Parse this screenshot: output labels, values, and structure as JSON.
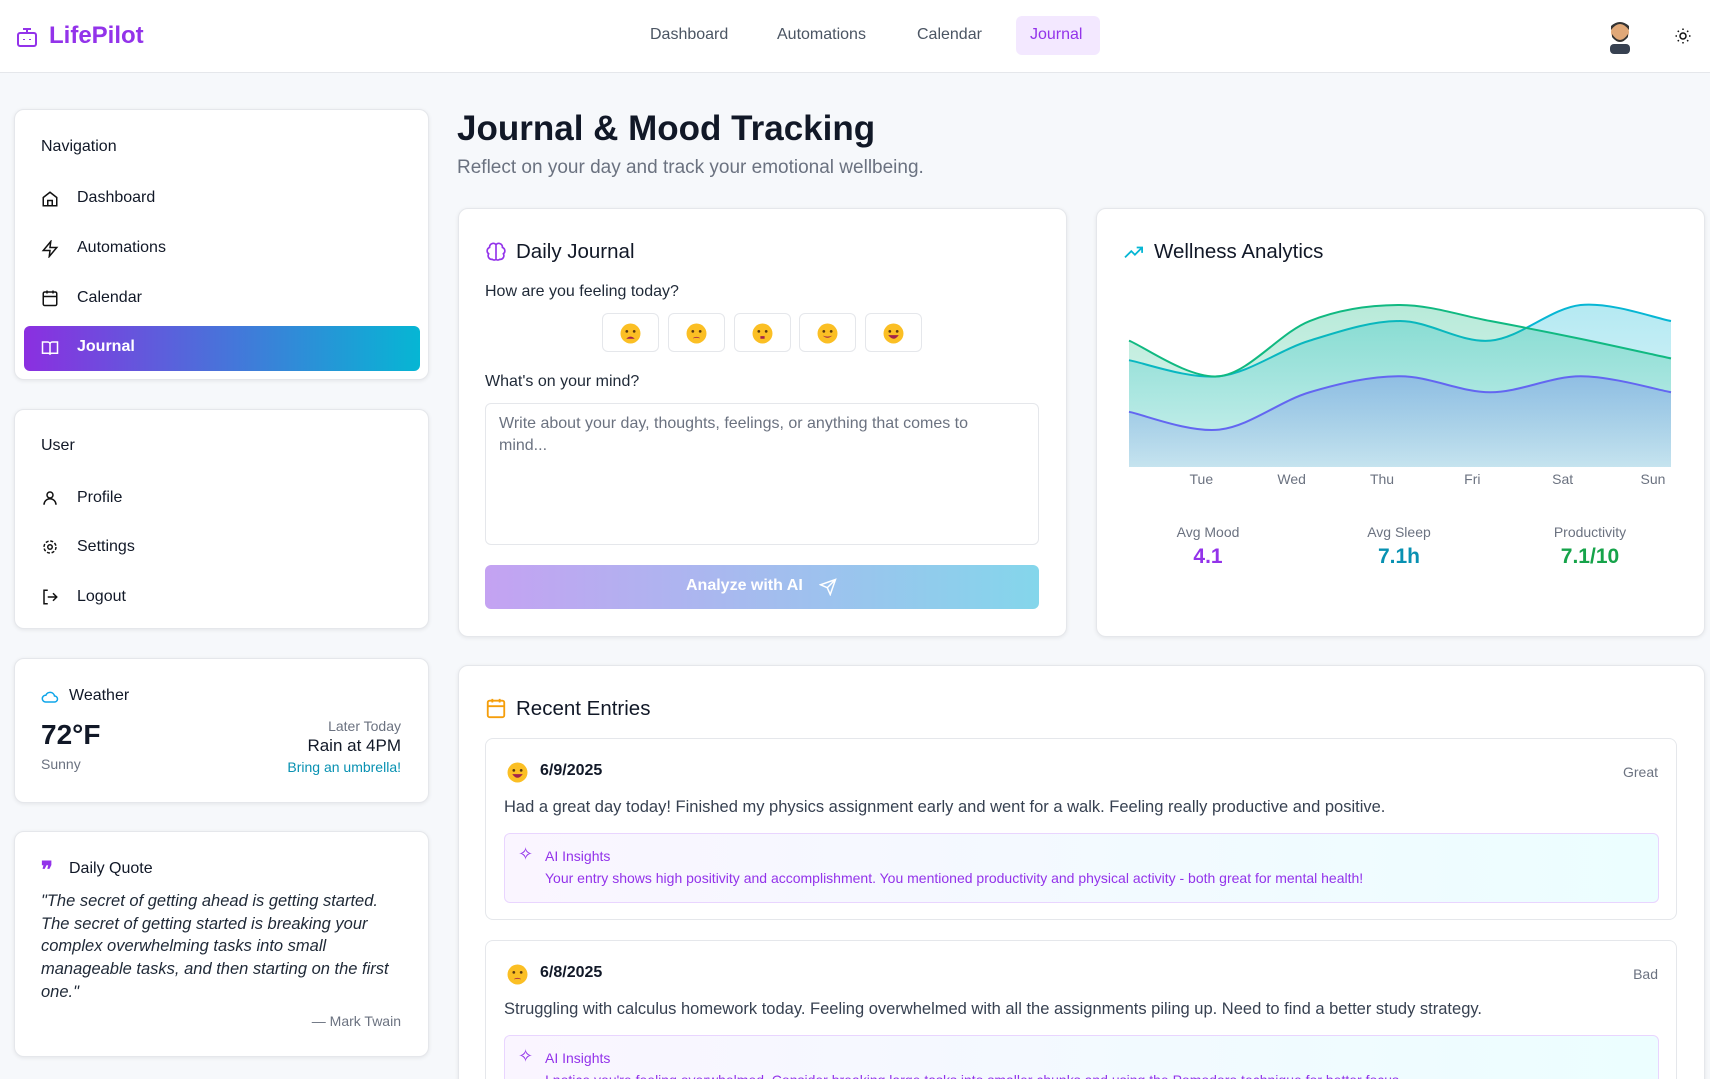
{
  "header": {
    "brand": "LifePilot",
    "nav": [
      "Dashboard",
      "Automations",
      "Calendar",
      "Journal"
    ]
  },
  "sidebar": {
    "navigation": {
      "title": "Navigation",
      "items": [
        "Dashboard",
        "Automations",
        "Calendar",
        "Journal"
      ]
    },
    "user": {
      "title": "User",
      "items": [
        "Profile",
        "Settings",
        "Logout"
      ]
    },
    "weather": {
      "title": "Weather",
      "temp": "72°F",
      "condition": "Sunny",
      "later_label": "Later Today",
      "forecast": "Rain at 4PM",
      "tip": "Bring an umbrella!"
    },
    "quote": {
      "title": "Daily Quote",
      "text": "\"The secret of getting ahead is getting started. The secret of getting started is breaking your complex overwhelming tasks into small manageable tasks, and then starting on the first one.\"",
      "author": "— Mark Twain"
    }
  },
  "main": {
    "title": "Journal & Mood Tracking",
    "subtitle": "Reflect on your day and track your emotional wellbeing.",
    "journal": {
      "title": "Daily Journal",
      "question": "How are you feeling today?",
      "prompt": "What's on your mind?",
      "placeholder": "Write about your day, thoughts, feelings, or anything that comes to mind...",
      "button": "Analyze with AI"
    },
    "wellness": {
      "title": "Wellness Analytics",
      "chart_data": {
        "type": "area",
        "categories": [
          null,
          "Tue",
          "Wed",
          "Thu",
          "Fri",
          "Sat",
          "Sun"
        ],
        "ylim": [
          0,
          10
        ],
        "series": [
          {
            "color": "#06b6d4",
            "values": [
              6.0,
              5.1,
              7.1,
              8.2,
              7.1,
              9.1,
              8.2
            ]
          },
          {
            "color": "#10b981",
            "values": [
              7.1,
              5.1,
              8.2,
              9.1,
              8.2,
              7.2,
              6.1
            ]
          },
          {
            "color": "#6366f1",
            "values": [
              3.1,
              2.1,
              4.2,
              5.1,
              4.2,
              5.1,
              4.2
            ]
          }
        ]
      },
      "stats": [
        {
          "label": "Avg Mood",
          "value": "4.1"
        },
        {
          "label": "Avg Sleep",
          "value": "7.1h"
        },
        {
          "label": "Productivity",
          "value": "7.1/10"
        }
      ]
    },
    "recent": {
      "title": "Recent Entries",
      "entries": [
        {
          "date": "6/9/2025",
          "mood": "Great",
          "text": "Had a great day today! Finished my physics assignment early and went for a walk. Feeling really productive and positive.",
          "insight_title": "AI Insights",
          "insight": "Your entry shows high positivity and accomplishment. You mentioned productivity and physical activity - both great for mental health!"
        },
        {
          "date": "6/8/2025",
          "mood": "Bad",
          "text": "Struggling with calculus homework today. Feeling overwhelmed with all the assignments piling up. Need to find a better study strategy.",
          "insight_title": "AI Insights",
          "insight": "I notice you're feeling overwhelmed. Consider breaking large tasks into smaller chunks and using the Pomodoro technique for better focus."
        }
      ]
    }
  }
}
